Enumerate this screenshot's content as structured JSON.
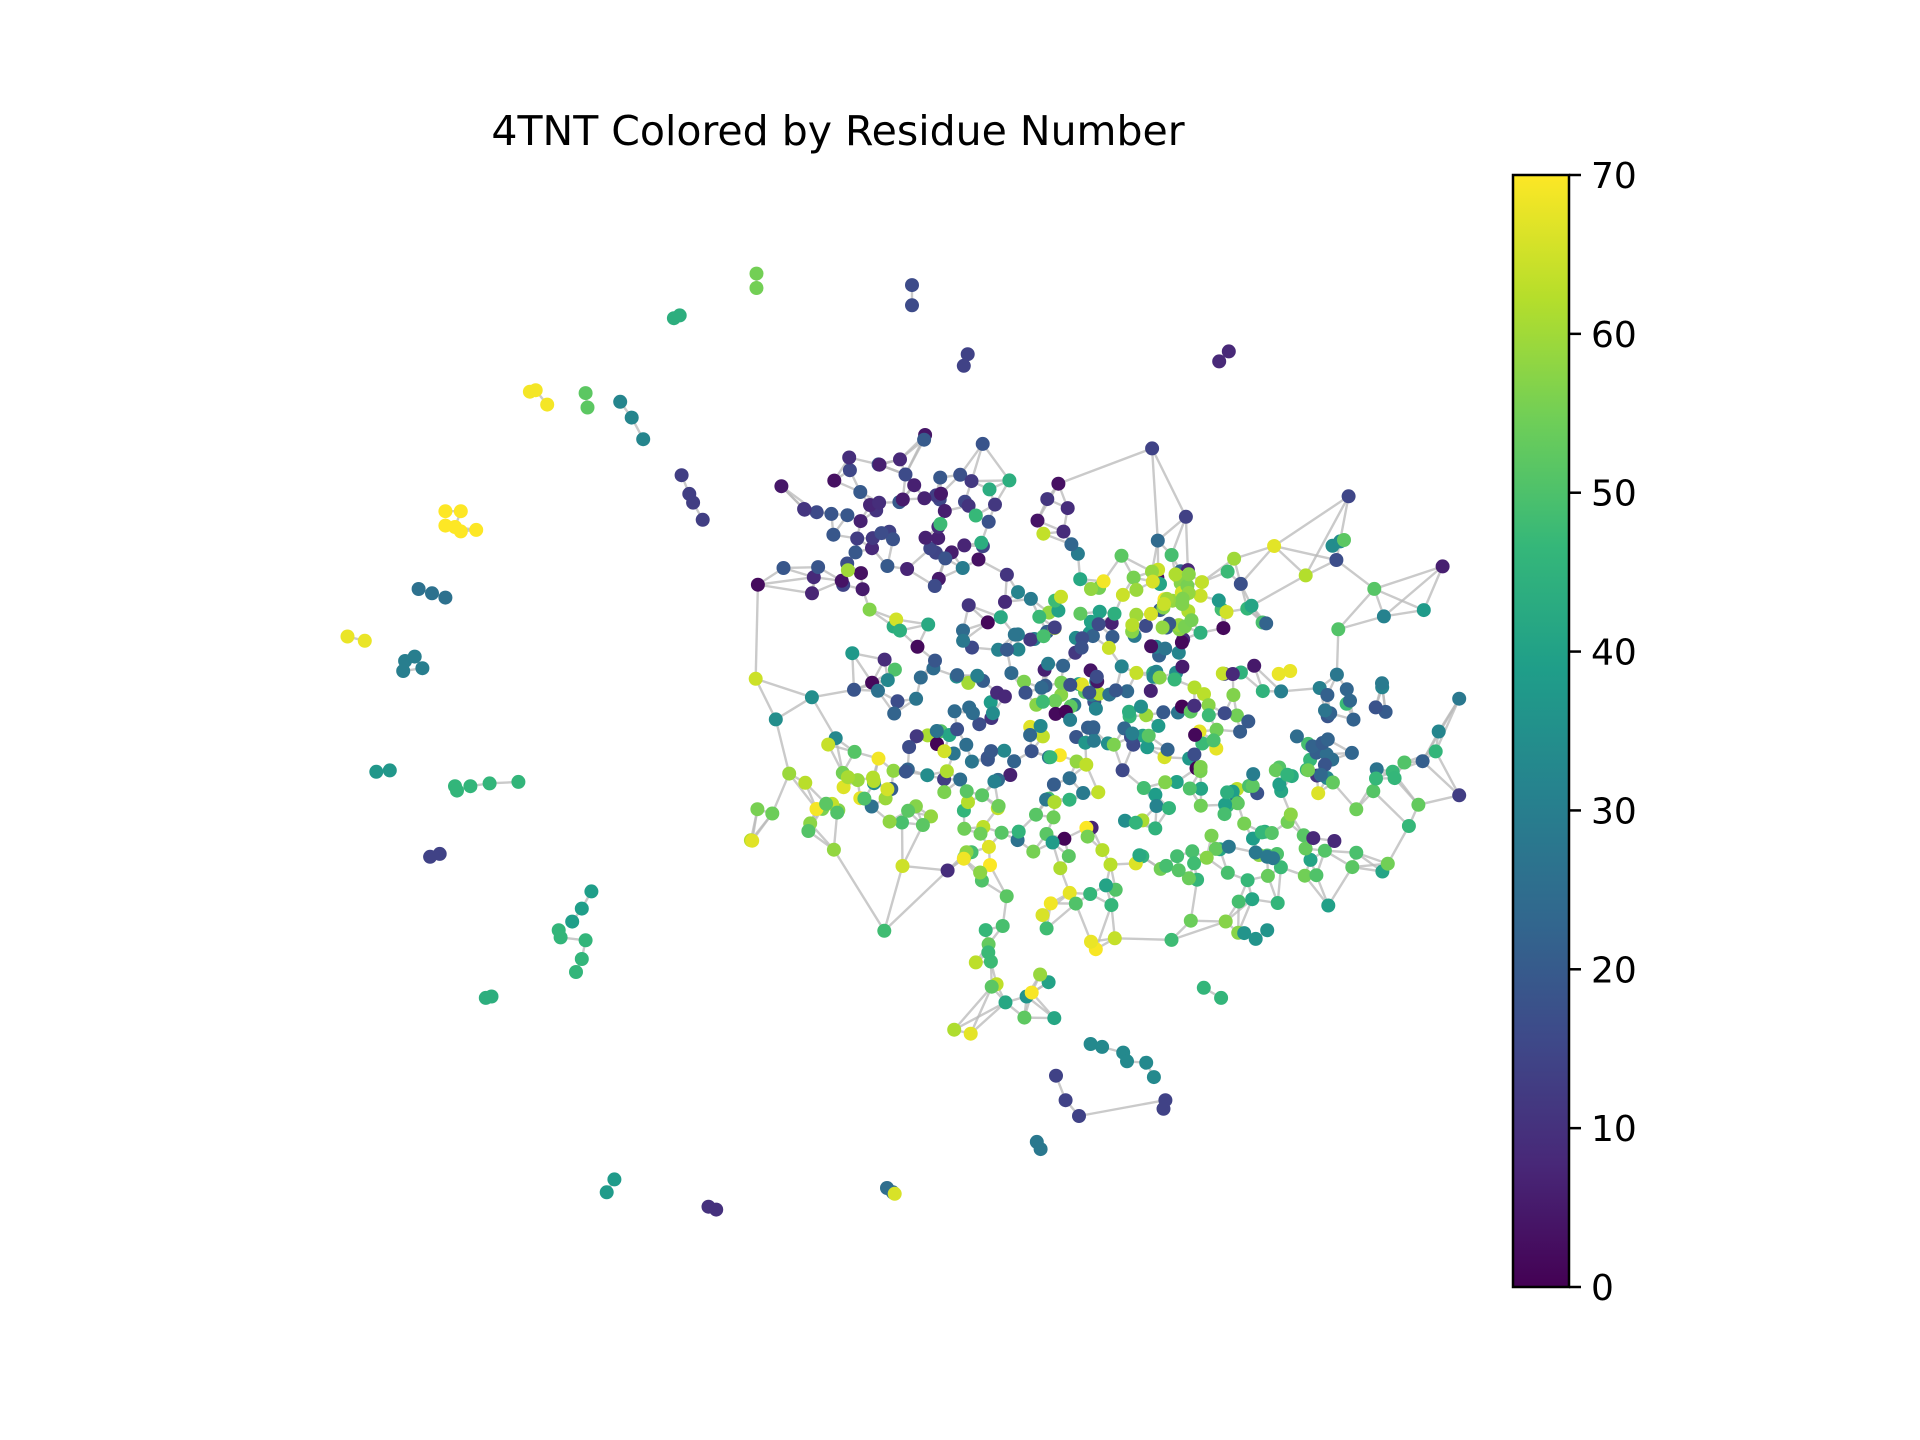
{
  "chart_data": {
    "type": "scatter",
    "title": "4TNT Colored by Residue Number",
    "color_scale": {
      "name": "viridis",
      "range": [
        0,
        70
      ],
      "ticks": [
        0,
        10,
        20,
        30,
        40,
        50,
        60,
        70
      ],
      "stops": [
        "#440154",
        "#482878",
        "#3e4989",
        "#31688e",
        "#26828e",
        "#1f9e89",
        "#35b779",
        "#6ece58",
        "#b5de2b",
        "#fde725"
      ]
    },
    "edge_color": "#b9b9b9",
    "grid": false,
    "axes_visible": false,
    "clusters": [
      {
        "x": 0.47,
        "y": 0.355,
        "sx": 0.055,
        "sy": 0.045,
        "n": 70,
        "c": [
          3,
          20
        ]
      },
      {
        "x": 0.575,
        "y": 0.46,
        "sx": 0.12,
        "sy": 0.09,
        "n": 220,
        "c": [
          0,
          70
        ]
      },
      {
        "x": 0.52,
        "y": 0.51,
        "sx": 0.08,
        "sy": 0.06,
        "n": 70,
        "c": [
          15,
          35
        ]
      },
      {
        "x": 0.535,
        "y": 0.575,
        "sx": 0.07,
        "sy": 0.06,
        "n": 60,
        "c": [
          45,
          70
        ]
      },
      {
        "x": 0.64,
        "y": 0.575,
        "sx": 0.08,
        "sy": 0.06,
        "n": 70,
        "c": [
          38,
          58
        ]
      },
      {
        "x": 0.605,
        "y": 0.415,
        "sx": 0.03,
        "sy": 0.025,
        "n": 30,
        "c": [
          55,
          66
        ]
      },
      {
        "x": 0.435,
        "y": 0.555,
        "sx": 0.035,
        "sy": 0.035,
        "n": 30,
        "c": [
          50,
          70
        ]
      },
      {
        "x": 0.7,
        "y": 0.505,
        "sx": 0.045,
        "sy": 0.035,
        "n": 30,
        "c": [
          18,
          32
        ]
      },
      {
        "x": 0.72,
        "y": 0.545,
        "sx": 0.03,
        "sy": 0.02,
        "n": 12,
        "c": [
          45,
          55
        ]
      },
      {
        "x": 0.52,
        "y": 0.68,
        "sx": 0.03,
        "sy": 0.035,
        "n": 18,
        "c": [
          35,
          70
        ]
      }
    ],
    "outlier_groups": [
      {
        "c": 55,
        "p": [
          [
            0.394,
            0.19
          ],
          [
            0.394,
            0.2
          ]
        ]
      },
      {
        "c": 16,
        "p": [
          [
            0.475,
            0.198
          ],
          [
            0.475,
            0.212
          ]
        ]
      },
      {
        "c": 44,
        "p": [
          [
            0.351,
            0.221
          ],
          [
            0.354,
            0.219
          ]
        ]
      },
      {
        "c": 14,
        "p": [
          [
            0.504,
            0.246
          ],
          [
            0.502,
            0.254
          ]
        ]
      },
      {
        "c": 8,
        "p": [
          [
            0.635,
            0.251
          ],
          [
            0.64,
            0.244
          ]
        ]
      },
      {
        "c": 69,
        "p": [
          [
            0.276,
            0.272
          ],
          [
            0.279,
            0.271
          ],
          [
            0.285,
            0.281
          ]
        ]
      },
      {
        "c": 52,
        "p": [
          [
            0.305,
            0.273
          ],
          [
            0.306,
            0.283
          ]
        ]
      },
      {
        "c": 32,
        "p": [
          [
            0.323,
            0.279
          ],
          [
            0.329,
            0.29
          ],
          [
            0.335,
            0.305
          ]
        ]
      },
      {
        "c": 13,
        "p": [
          [
            0.355,
            0.33
          ],
          [
            0.359,
            0.343
          ],
          [
            0.361,
            0.349
          ],
          [
            0.366,
            0.361
          ]
        ]
      },
      {
        "c": 70,
        "p": [
          [
            0.232,
            0.355
          ],
          [
            0.24,
            0.355
          ],
          [
            0.237,
            0.366
          ],
          [
            0.24,
            0.369
          ],
          [
            0.248,
            0.368
          ],
          [
            0.232,
            0.365
          ]
        ]
      },
      {
        "c": 26,
        "p": [
          [
            0.218,
            0.409
          ],
          [
            0.225,
            0.412
          ],
          [
            0.232,
            0.415
          ]
        ]
      },
      {
        "c": 68,
        "p": [
          [
            0.181,
            0.442
          ],
          [
            0.19,
            0.445
          ]
        ]
      },
      {
        "c": 30,
        "p": [
          [
            0.211,
            0.459
          ],
          [
            0.216,
            0.456
          ],
          [
            0.22,
            0.464
          ],
          [
            0.21,
            0.466
          ]
        ]
      },
      {
        "c": 34,
        "p": [
          [
            0.694,
            0.379
          ],
          [
            0.698,
            0.376
          ]
        ]
      },
      {
        "c": 52,
        "p": [
          [
            0.7,
            0.375
          ]
        ]
      },
      {
        "c": 68,
        "p": [
          [
            0.666,
            0.468
          ],
          [
            0.672,
            0.466
          ]
        ]
      },
      {
        "c": 37,
        "p": [
          [
            0.196,
            0.536
          ],
          [
            0.203,
            0.535
          ]
        ]
      },
      {
        "c": 46,
        "p": [
          [
            0.237,
            0.546
          ],
          [
            0.238,
            0.549
          ],
          [
            0.245,
            0.546
          ],
          [
            0.255,
            0.544
          ],
          [
            0.27,
            0.543
          ]
        ]
      },
      {
        "c": 14,
        "p": [
          [
            0.224,
            0.595
          ],
          [
            0.229,
            0.593
          ]
        ]
      },
      {
        "c": 39,
        "p": [
          [
            0.308,
            0.619
          ],
          [
            0.303,
            0.631
          ],
          [
            0.298,
            0.64
          ]
        ]
      },
      {
        "c": 46,
        "p": [
          [
            0.291,
            0.646
          ],
          [
            0.292,
            0.651
          ],
          [
            0.305,
            0.653
          ],
          [
            0.303,
            0.666
          ],
          [
            0.3,
            0.675
          ]
        ]
      },
      {
        "c": 44,
        "p": [
          [
            0.253,
            0.693
          ],
          [
            0.256,
            0.692
          ]
        ]
      },
      {
        "c": 8,
        "p": [
          [
            0.684,
            0.582
          ],
          [
            0.695,
            0.584
          ]
        ]
      },
      {
        "c": 28,
        "p": [
          [
            0.64,
            0.588
          ],
          [
            0.654,
            0.592
          ],
          [
            0.66,
            0.595
          ],
          [
            0.663,
            0.596
          ]
        ]
      },
      {
        "c": 36,
        "p": [
          [
            0.648,
            0.648
          ],
          [
            0.654,
            0.652
          ],
          [
            0.66,
            0.646
          ]
        ]
      },
      {
        "c": 46,
        "p": [
          [
            0.627,
            0.686
          ],
          [
            0.636,
            0.693
          ]
        ]
      },
      {
        "c": 33,
        "p": [
          [
            0.568,
            0.725
          ],
          [
            0.574,
            0.727
          ],
          [
            0.585,
            0.731
          ],
          [
            0.587,
            0.737
          ],
          [
            0.597,
            0.738
          ],
          [
            0.601,
            0.748
          ]
        ]
      },
      {
        "c": 14,
        "p": [
          [
            0.55,
            0.747
          ],
          [
            0.555,
            0.764
          ],
          [
            0.562,
            0.775
          ],
          [
            0.607,
            0.764
          ],
          [
            0.606,
            0.77
          ]
        ]
      },
      {
        "c": 28,
        "p": [
          [
            0.54,
            0.793
          ],
          [
            0.542,
            0.798
          ]
        ]
      },
      {
        "c": 38,
        "p": [
          [
            0.32,
            0.819
          ],
          [
            0.316,
            0.828
          ]
        ]
      },
      {
        "c": 10,
        "p": [
          [
            0.369,
            0.838
          ],
          [
            0.373,
            0.84
          ]
        ]
      },
      {
        "c": 25,
        "p": [
          [
            0.462,
            0.825
          ],
          [
            0.465,
            0.828
          ]
        ]
      },
      {
        "c": 66,
        "p": [
          [
            0.466,
            0.829
          ]
        ]
      }
    ]
  }
}
